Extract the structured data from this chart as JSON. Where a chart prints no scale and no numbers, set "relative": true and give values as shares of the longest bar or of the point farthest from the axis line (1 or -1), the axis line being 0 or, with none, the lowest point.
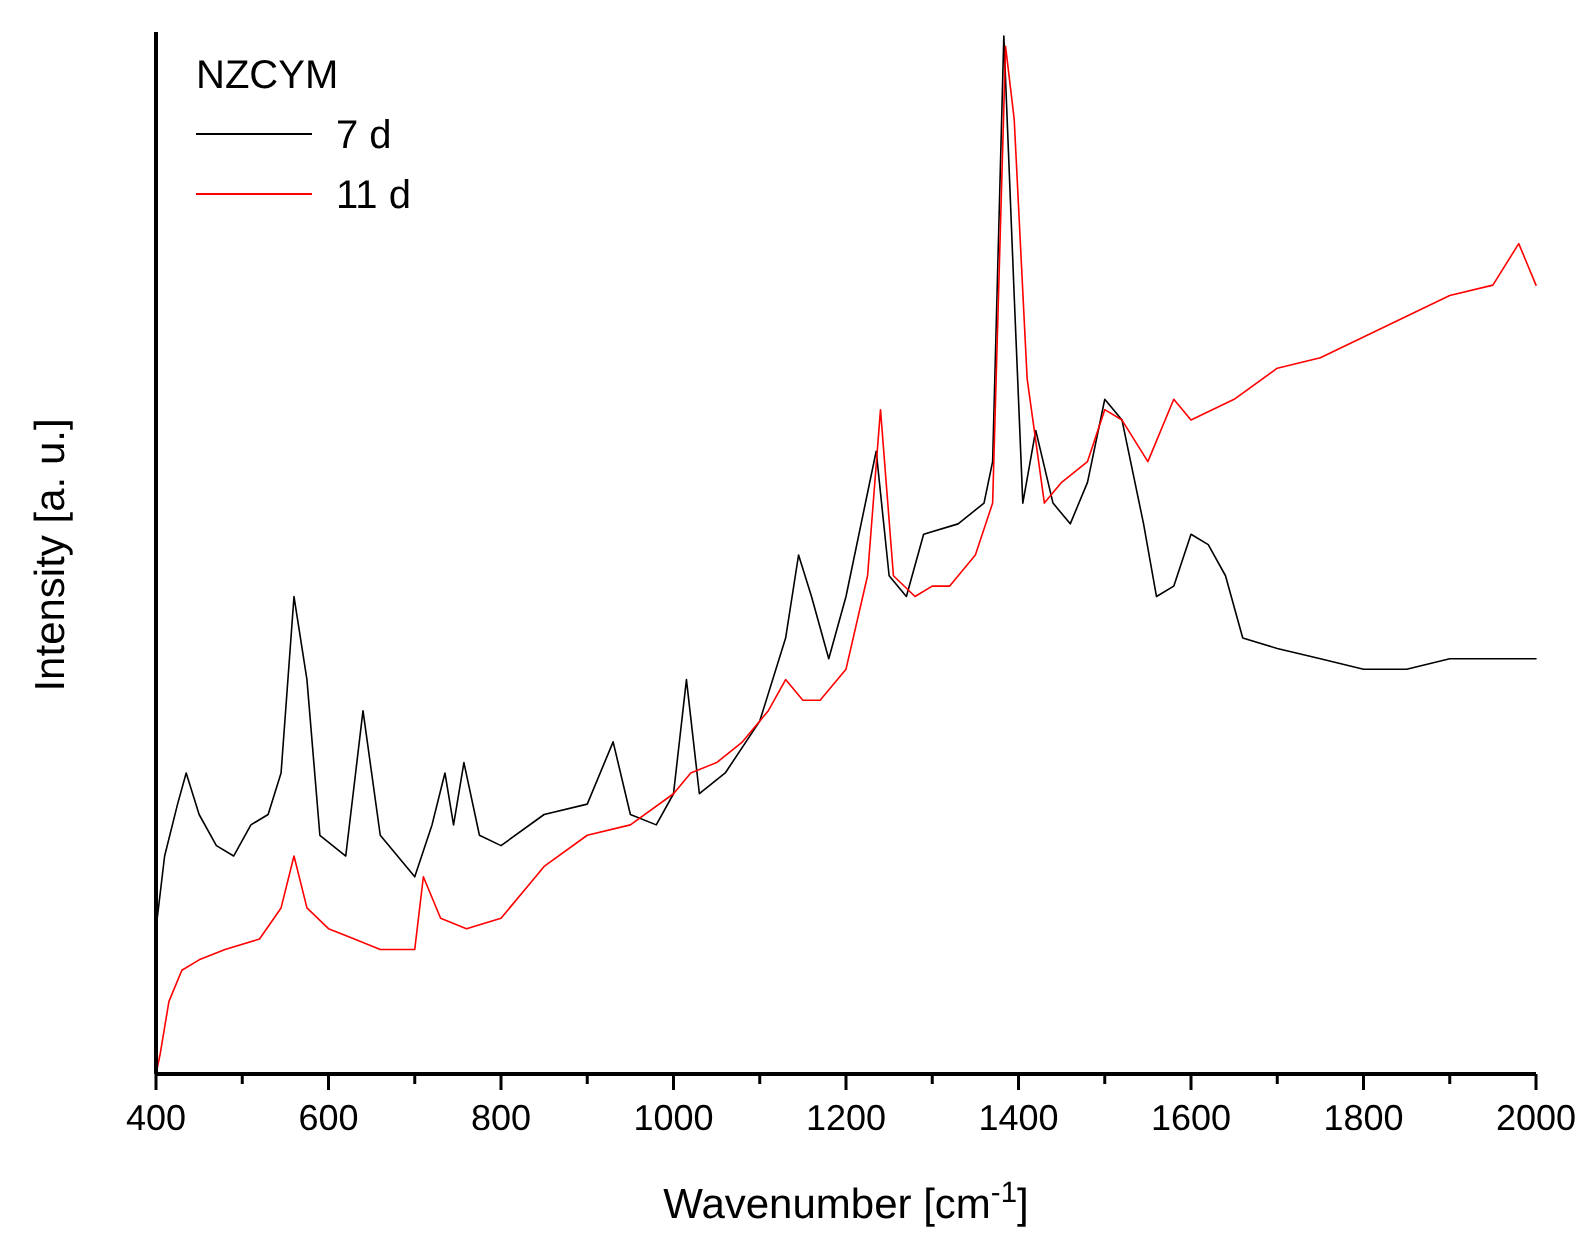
{
  "chart_data": {
    "type": "line",
    "relative": true,
    "xlabel": "Wavenumber [cm$^{-1}$]",
    "ylabel": "Intensity [a. u.]",
    "legend_title": "NZCYM",
    "legend": "top left",
    "grid": false,
    "xlim": [
      400,
      2000
    ],
    "xticks": [
      400,
      {
        "value": 500,
        "label": null
      },
      600,
      {
        "value": 700,
        "label": null
      },
      800,
      {
        "value": 900,
        "label": null
      },
      1000,
      {
        "value": 1100,
        "label": null
      },
      1200,
      {
        "value": 1300,
        "label": null
      },
      1400,
      {
        "value": 1500,
        "label": null
      },
      1600,
      {
        "value": 1700,
        "label": null
      },
      1800,
      {
        "value": 1900,
        "label": null
      },
      2000
    ],
    "series": [
      {
        "name": "7 d",
        "color": "#000000",
        "x": [
          400,
          410,
          425,
          435,
          450,
          470,
          490,
          510,
          530,
          545,
          560,
          575,
          590,
          620,
          640,
          660,
          700,
          720,
          735,
          745,
          757,
          775,
          800,
          850,
          900,
          930,
          950,
          980,
          1000,
          1015,
          1030,
          1060,
          1100,
          1130,
          1145,
          1160,
          1180,
          1200,
          1225,
          1235,
          1250,
          1270,
          1290,
          1330,
          1360,
          1370,
          1383,
          1395,
          1405,
          1420,
          1440,
          1460,
          1480,
          1500,
          1520,
          1545,
          1560,
          1580,
          1600,
          1620,
          1640,
          1660,
          1700,
          1750,
          1800,
          1850,
          1900,
          1950,
          2000
        ],
        "values": [
          0.14,
          0.21,
          0.26,
          0.29,
          0.25,
          0.22,
          0.21,
          0.24,
          0.25,
          0.29,
          0.46,
          0.38,
          0.23,
          0.21,
          0.35,
          0.23,
          0.19,
          0.24,
          0.29,
          0.24,
          0.3,
          0.23,
          0.22,
          0.25,
          0.26,
          0.32,
          0.25,
          0.24,
          0.27,
          0.38,
          0.27,
          0.29,
          0.34,
          0.42,
          0.5,
          0.46,
          0.4,
          0.46,
          0.56,
          0.6,
          0.48,
          0.46,
          0.52,
          0.53,
          0.55,
          0.59,
          1,
          0.75,
          0.55,
          0.62,
          0.55,
          0.53,
          0.57,
          0.65,
          0.63,
          0.53,
          0.46,
          0.47,
          0.52,
          0.51,
          0.48,
          0.42,
          0.41,
          0.4,
          0.39,
          0.39,
          0.4,
          0.4,
          0.4
        ]
      },
      {
        "name": "11 d",
        "color": "#ff0000",
        "x": [
          400,
          405,
          415,
          430,
          450,
          480,
          520,
          545,
          560,
          575,
          600,
          630,
          660,
          700,
          710,
          730,
          760,
          800,
          830,
          850,
          900,
          950,
          1000,
          1020,
          1050,
          1080,
          1110,
          1130,
          1150,
          1170,
          1200,
          1225,
          1240,
          1255,
          1280,
          1300,
          1320,
          1350,
          1370,
          1385,
          1395,
          1410,
          1430,
          1450,
          1480,
          1500,
          1520,
          1550,
          1580,
          1600,
          1650,
          1700,
          1750,
          1800,
          1850,
          1900,
          1950,
          1980,
          2000
        ],
        "values": [
          0,
          0.02,
          0.07,
          0.1,
          0.11,
          0.12,
          0.13,
          0.16,
          0.21,
          0.16,
          0.14,
          0.13,
          0.12,
          0.12,
          0.19,
          0.15,
          0.14,
          0.15,
          0.18,
          0.2,
          0.23,
          0.24,
          0.27,
          0.29,
          0.3,
          0.32,
          0.35,
          0.38,
          0.36,
          0.36,
          0.39,
          0.48,
          0.64,
          0.48,
          0.46,
          0.47,
          0.47,
          0.5,
          0.55,
          0.99,
          0.92,
          0.67,
          0.55,
          0.57,
          0.59,
          0.64,
          0.63,
          0.59,
          0.65,
          0.63,
          0.65,
          0.68,
          0.69,
          0.71,
          0.73,
          0.75,
          0.76,
          0.8,
          0.76
        ]
      }
    ]
  }
}
